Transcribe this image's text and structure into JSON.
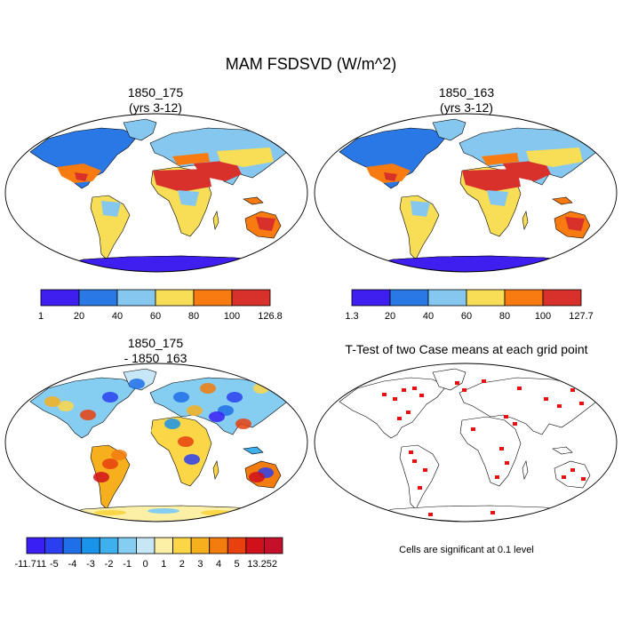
{
  "main_title": "MAM FSDSVD (W/m^2)",
  "panels": {
    "top_left": {
      "title_line1": "1850_175",
      "title_line2": "(yrs 3-12)"
    },
    "top_right": {
      "title_line1": "1850_163",
      "title_line2": "(yrs 3-12)"
    },
    "bottom_left": {
      "title_line1": "1850_175",
      "title_line2": "- 1850_163"
    },
    "bottom_right": {
      "title_line1": "T-Test of two Case means at each grid point"
    }
  },
  "colorbars": {
    "top_left": {
      "labels": [
        "1",
        "20",
        "40",
        "60",
        "80",
        "100",
        "126.8"
      ],
      "colors": [
        "#3f1ff0",
        "#2a78e6",
        "#86c7ef",
        "#f8dd57",
        "#f77b10",
        "#d8302a"
      ]
    },
    "top_right": {
      "labels": [
        "1.3",
        "20",
        "40",
        "60",
        "80",
        "100",
        "127.7"
      ],
      "colors": [
        "#3f1ff0",
        "#2a78e6",
        "#86c7ef",
        "#f8dd57",
        "#f77b10",
        "#d8302a"
      ]
    },
    "bottom_left": {
      "labels": [
        "-11.711",
        "-5",
        "-4",
        "-3",
        "-2",
        "-1",
        "0",
        "1",
        "2",
        "3",
        "4",
        "5",
        "13.252"
      ],
      "colors": [
        "#3a1ff5",
        "#2b3ff0",
        "#1e6fe8",
        "#1a93ea",
        "#3fb0ee",
        "#86cdf2",
        "#c7e7f6",
        "#fbf0a6",
        "#fbd748",
        "#f6b01e",
        "#f27c0e",
        "#e8410f",
        "#d0101b",
        "#c4102a"
      ]
    }
  },
  "significance_note": "Cells are significant at 0.1 level",
  "significance_color": "#e81010"
}
